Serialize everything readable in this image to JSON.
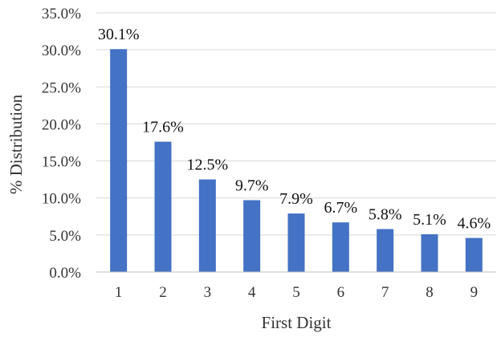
{
  "chart_data": {
    "type": "bar",
    "categories": [
      "1",
      "2",
      "3",
      "4",
      "5",
      "6",
      "7",
      "8",
      "9"
    ],
    "values": [
      30.1,
      17.6,
      12.5,
      9.7,
      7.9,
      6.7,
      5.8,
      5.1,
      4.6
    ],
    "data_labels": [
      "30.1%",
      "17.6%",
      "12.5%",
      "9.7%",
      "7.9%",
      "6.7%",
      "5.8%",
      "5.1%",
      "4.6%"
    ],
    "title": "",
    "xlabel": "First Digit",
    "ylabel": "% Distribution",
    "ylim": [
      0,
      35
    ],
    "y_ticks": [
      0,
      5,
      10,
      15,
      20,
      25,
      30,
      35
    ],
    "y_tick_labels": [
      "0.0%",
      "5.0%",
      "10.0%",
      "15.0%",
      "20.0%",
      "25.0%",
      "30.0%",
      "35.0%"
    ],
    "grid": true,
    "legend": "none",
    "bar_color": "#4472c4"
  }
}
